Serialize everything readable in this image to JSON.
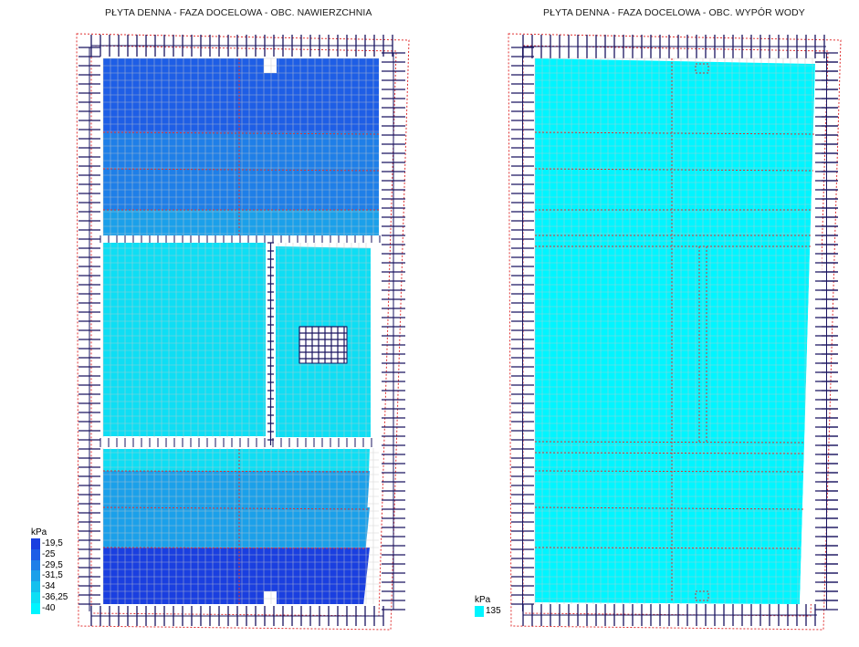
{
  "left_panel": {
    "title": "PŁYTA DENNA - FAZA DOCELOWA - OBC. NAWIERZCHNIA",
    "legend": {
      "unit": "kPa",
      "items": [
        {
          "label": "-19,5",
          "color": "#1a3fe0"
        },
        {
          "label": "-25",
          "color": "#1e5ee6"
        },
        {
          "label": "-29,5",
          "color": "#1f7fe8"
        },
        {
          "label": "-31,5",
          "color": "#1ba0ea"
        },
        {
          "label": "-34",
          "color": "#14c0ee"
        },
        {
          "label": "-36,25",
          "color": "#0edef4"
        },
        {
          "label": "-40",
          "color": "#00f5ff"
        }
      ]
    }
  },
  "right_panel": {
    "title": "PŁYTA DENNA - FAZA DOCELOWA - OBC. WYPÓR WODY",
    "legend": {
      "unit": "kPa",
      "items": [
        {
          "label": "135",
          "color": "#00f5ff"
        }
      ]
    }
  },
  "colors": {
    "border_dash": "#e03030",
    "frame_lines": "#1a1560",
    "mesh": "#c8c8c8"
  }
}
